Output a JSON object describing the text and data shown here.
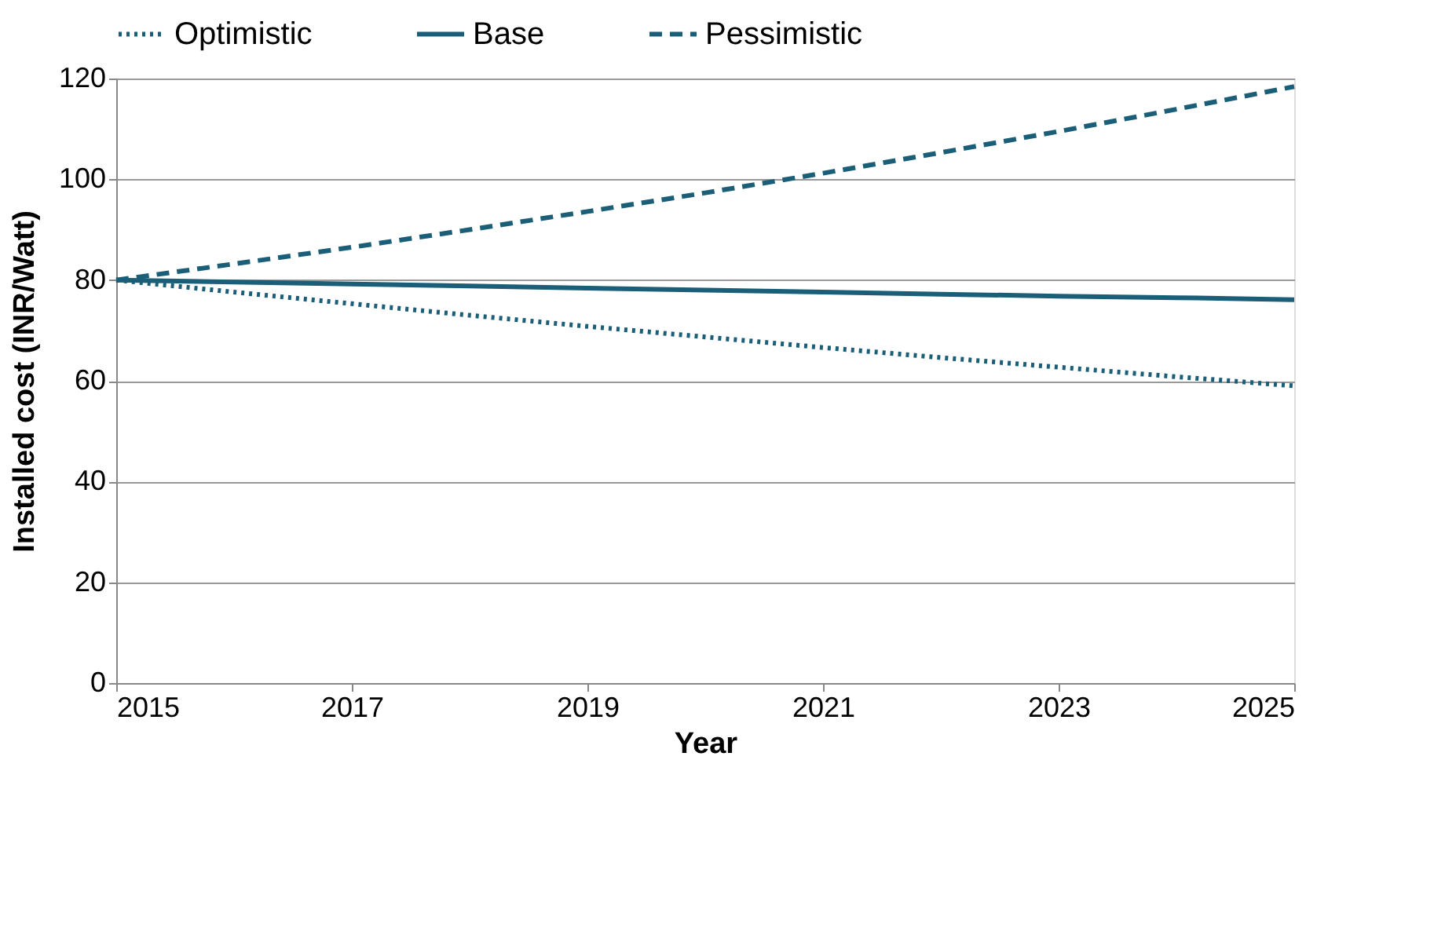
{
  "chart_data": {
    "type": "line",
    "xlabel": "Year",
    "ylabel": "Installed cost (INR/Watt)",
    "x": [
      2015,
      2016,
      2017,
      2018,
      2019,
      2020,
      2021,
      2022,
      2023,
      2024,
      2025
    ],
    "series": [
      {
        "name": "Optimistic",
        "color": "#1b5e78",
        "line_style": "dotted",
        "values": [
          80,
          77.6,
          75.3,
          73,
          70.8,
          68.7,
          66.6,
          64.6,
          62.7,
          60.8,
          59
        ]
      },
      {
        "name": "Base",
        "color": "#1b5e78",
        "line_style": "solid",
        "values": [
          80,
          79.6,
          79.2,
          78.8,
          78.4,
          78,
          77.6,
          77.2,
          76.8,
          76.5,
          76.1
        ]
      },
      {
        "name": "Pessimistic",
        "color": "#1b5e78",
        "line_style": "dashed",
        "values": [
          80,
          83.2,
          86.5,
          90,
          93.6,
          97.3,
          101.2,
          105.3,
          109.5,
          113.9,
          118.4
        ]
      }
    ],
    "xlim": [
      2015,
      2025
    ],
    "xticks": [
      2015,
      2017,
      2019,
      2021,
      2023,
      2025
    ],
    "ylim": [
      0,
      120
    ],
    "yticks": [
      0,
      20,
      40,
      60,
      80,
      100,
      120
    ],
    "grid": "y",
    "legend": "top",
    "marker": "none"
  }
}
